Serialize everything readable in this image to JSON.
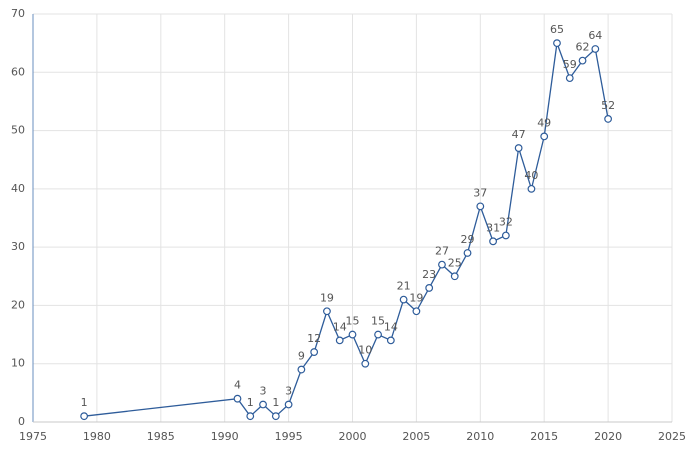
{
  "chart_data": {
    "type": "line",
    "x": [
      1979,
      1991,
      1992,
      1993,
      1994,
      1995,
      1996,
      1997,
      1998,
      1999,
      2000,
      2001,
      2002,
      2003,
      2004,
      2005,
      2006,
      2007,
      2008,
      2009,
      2010,
      2011,
      2012,
      2013,
      2014,
      2015,
      2016,
      2017,
      2018,
      2019,
      2020
    ],
    "values": [
      1,
      4,
      1,
      3,
      1,
      3,
      9,
      12,
      19,
      14,
      15,
      10,
      15,
      14,
      21,
      19,
      23,
      27,
      25,
      29,
      37,
      31,
      32,
      47,
      40,
      49,
      65,
      59,
      62,
      64,
      52
    ],
    "color": "#2e5c9a",
    "xlim": [
      1975,
      2025
    ],
    "xticks": [
      1975,
      1980,
      1985,
      1990,
      1995,
      2000,
      2005,
      2010,
      2015,
      2020,
      2025
    ],
    "ylim": [
      0,
      70
    ],
    "yticks": [
      0,
      10,
      20,
      30,
      40,
      50,
      60,
      70
    ],
    "grid": true
  }
}
